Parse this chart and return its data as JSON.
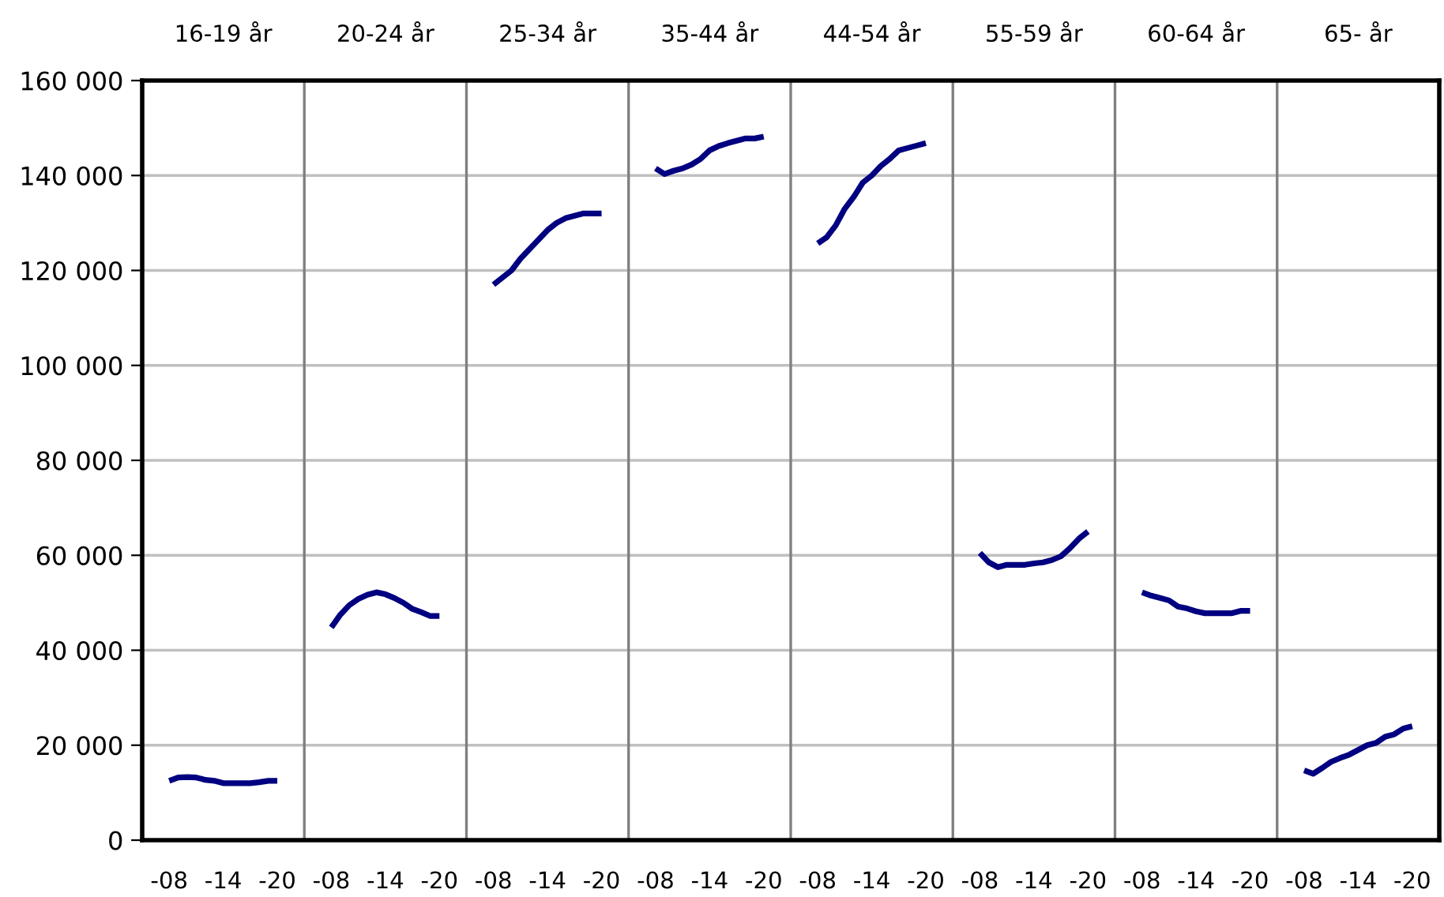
{
  "chart_data": {
    "type": "line",
    "color": "#000080",
    "line_style": "solid",
    "grid": "y",
    "annotations": [
      "16-19 år",
      "20-24 år",
      "25-34 år",
      "35-44 år",
      "44-54 år",
      "55-59 år",
      "60-64 år",
      "65- år"
    ],
    "categories": [
      "-08",
      null,
      null,
      null,
      null,
      null,
      "-14",
      null,
      null,
      null,
      null,
      null,
      "-20",
      null,
      null,
      null,
      null,
      null,
      "-08",
      null,
      null,
      null,
      null,
      null,
      "-14",
      null,
      null,
      null,
      null,
      null,
      "-20",
      null,
      null,
      null,
      null,
      null,
      "-08",
      null,
      null,
      null,
      null,
      null,
      "-14",
      null,
      null,
      null,
      null,
      null,
      "-20",
      null,
      null,
      null,
      null,
      null,
      "-08",
      null,
      null,
      null,
      null,
      null,
      "-14",
      null,
      null,
      null,
      null,
      null,
      "-20",
      null,
      null,
      null,
      null,
      null,
      "-08",
      null,
      null,
      null,
      null,
      null,
      "-14",
      null,
      null,
      null,
      null,
      null,
      "-20",
      null,
      null,
      null,
      null,
      null,
      "-08",
      null,
      null,
      null,
      null,
      null,
      "-14",
      null,
      null,
      null,
      null,
      null,
      "-20",
      null,
      null,
      null,
      null,
      null,
      "-08",
      null,
      null,
      null,
      null,
      null,
      "-14",
      null,
      null,
      null,
      null,
      null,
      "-20",
      null,
      null,
      null,
      null,
      null,
      "-08",
      null,
      null,
      null,
      null,
      null,
      "-14",
      null,
      null,
      null,
      null,
      null,
      "-20"
    ],
    "values": [
      12500,
      13200,
      13300,
      13200,
      12700,
      12500,
      12000,
      12000,
      12000,
      12000,
      12200,
      12500,
      12500,
      null,
      null,
      null,
      null,
      null,
      44800,
      47500,
      49500,
      50800,
      51700,
      52200,
      51800,
      51000,
      50000,
      48700,
      48000,
      47200,
      47200,
      null,
      null,
      null,
      null,
      null,
      117000,
      118500,
      120000,
      122500,
      124500,
      126500,
      128500,
      130000,
      131000,
      131500,
      132000,
      132000,
      132000,
      null,
      null,
      null,
      null,
      null,
      141500,
      140300,
      141000,
      141500,
      142300,
      143500,
      145300,
      146200,
      146800,
      147300,
      147800,
      147800,
      148200,
      null,
      null,
      null,
      null,
      null,
      125700,
      127000,
      129500,
      133000,
      135500,
      138500,
      140000,
      142000,
      143500,
      145300,
      145800,
      146300,
      146800,
      null,
      null,
      null,
      null,
      null,
      60500,
      58500,
      57500,
      58000,
      58000,
      58000,
      58300,
      58500,
      59000,
      59800,
      61500,
      63500,
      65000,
      null,
      null,
      null,
      null,
      null,
      52200,
      51500,
      51000,
      50500,
      49200,
      48800,
      48200,
      47800,
      47800,
      47800,
      47800,
      48300,
      48300,
      null,
      null,
      null,
      null,
      null,
      14700,
      14000,
      15200,
      16500,
      17300,
      18000,
      19000,
      20000,
      20500,
      21800,
      22300,
      23500,
      24000
    ],
    "ylim": [
      0,
      160000
    ],
    "yticks": [
      {
        "value": 0,
        "label": "0"
      },
      {
        "value": 20000,
        "label": "20 000"
      },
      {
        "value": 40000,
        "label": "40 000"
      },
      {
        "value": 60000,
        "label": "60 000"
      },
      {
        "value": 80000,
        "label": "80 000"
      },
      {
        "value": 100000,
        "label": "100 000"
      },
      {
        "value": 120000,
        "label": "120 000"
      },
      {
        "value": 140000,
        "label": "140 000"
      },
      {
        "value": 160000,
        "label": "160 000"
      }
    ]
  }
}
